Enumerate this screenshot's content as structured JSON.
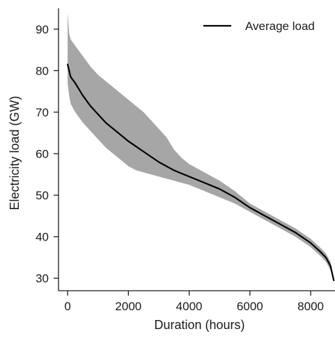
{
  "chart_data": {
    "type": "area",
    "title": "",
    "xlabel": "Duration (hours)",
    "ylabel": "Electricity load (GW)",
    "xlim": [
      -300,
      8800
    ],
    "ylim": [
      27,
      95
    ],
    "xticks": [
      0,
      2000,
      4000,
      6000,
      8000
    ],
    "yticks": [
      30,
      40,
      50,
      60,
      70,
      80,
      90
    ],
    "grid": false,
    "legend": {
      "position": "top-right",
      "entries": [
        "Average load"
      ]
    },
    "series": [
      {
        "name": "Average load",
        "style": "line",
        "color": "#000000",
        "x": [
          0,
          100,
          250,
          500,
          750,
          1000,
          1250,
          1500,
          1750,
          2000,
          2500,
          3000,
          3500,
          4000,
          4500,
          5000,
          5500,
          6000,
          6500,
          7000,
          7500,
          8000,
          8300,
          8500,
          8650,
          8760
        ],
        "y": [
          81.5,
          78.5,
          77,
          74,
          71.5,
          69.5,
          67.5,
          66,
          64.5,
          63,
          60.5,
          58,
          56,
          54.5,
          53,
          51.5,
          49.5,
          47,
          45,
          43,
          41,
          38.5,
          36.5,
          35,
          33,
          29.5
        ]
      },
      {
        "name": "",
        "style": "band",
        "color": "#a6a6a6",
        "x": [
          0,
          50,
          100,
          250,
          500,
          750,
          1000,
          1250,
          1500,
          1750,
          2000,
          2250,
          2500,
          2750,
          3000,
          3250,
          3500,
          3750,
          4000,
          4500,
          5000,
          5500,
          6000,
          6500,
          7000,
          7500,
          8000,
          8300,
          8500,
          8650,
          8760
        ],
        "upper": [
          94,
          89,
          87.5,
          86,
          83.5,
          81,
          79,
          77.5,
          76,
          74.5,
          73,
          71.5,
          70,
          68,
          66,
          64,
          61,
          59,
          57.5,
          55.5,
          53.5,
          51,
          48,
          46,
          44,
          42,
          39.5,
          37.5,
          36,
          34,
          30
        ],
        "lower": [
          77,
          74,
          72,
          70,
          67.5,
          65.5,
          63.5,
          61.5,
          60,
          58.5,
          57,
          56,
          55.5,
          55,
          54.5,
          54,
          53.5,
          53,
          52.5,
          51,
          49.5,
          48,
          46,
          44,
          42,
          40,
          37.5,
          35.5,
          34,
          32,
          29
        ]
      }
    ]
  }
}
